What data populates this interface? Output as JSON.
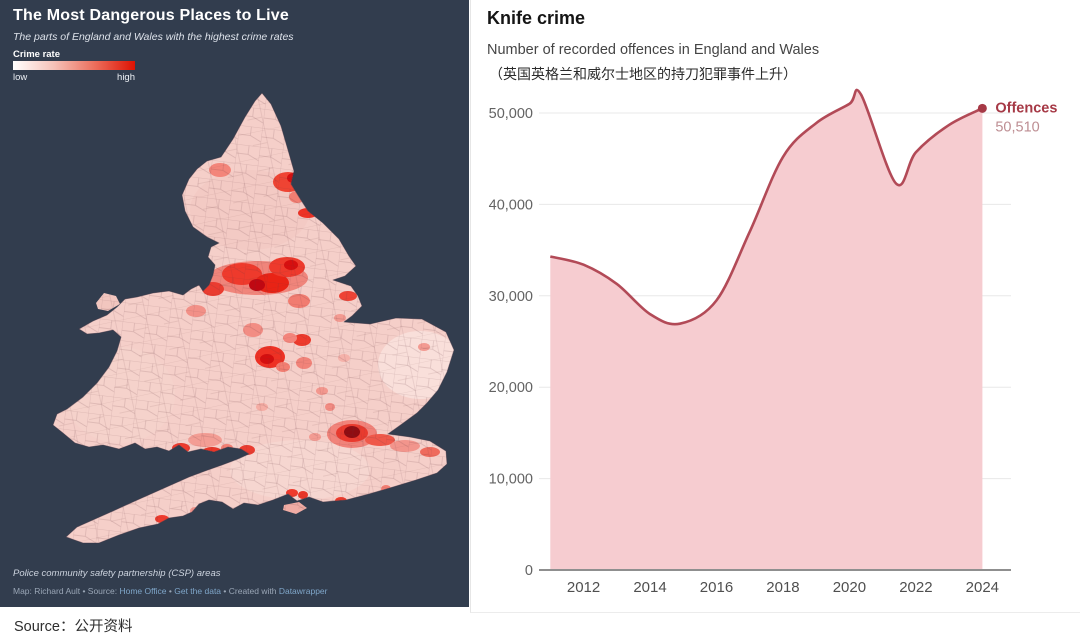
{
  "colors": {
    "left_bg": "#323d4e",
    "line": "#b24a57",
    "area_fill": "#f5c9cd",
    "dot": "#a63946",
    "offences_label": "#a63946",
    "offences_value": "#bd8d92",
    "grid": "#e8e8e8",
    "axis": "#8f8f8f",
    "ytick_text": "#636363",
    "xtick_text": "#4f4f4f",
    "link": "#7fa6c9",
    "legend_gradient": [
      "#ffffff",
      "#f6c2b9",
      "#ec6f5d",
      "#dd1202"
    ]
  },
  "left_panel": {
    "title": "The Most Dangerous Places to Live",
    "subtitle": "The parts of England and Wales with the highest crime rates",
    "legend": {
      "label": "Crime rate",
      "low": "low",
      "high": "high"
    },
    "footnote": "Police community safety partnership (CSP) areas",
    "credits": {
      "prefix": "Map: Richard Ault • Source: ",
      "link1": "Home Office",
      "sep1": " • ",
      "link2": "Get the data",
      "sep2": " • Created with ",
      "link3": "Datawrapper"
    }
  },
  "source_row": {
    "label": "Source：",
    "value": "公开资料"
  },
  "chart_data": [
    {
      "type": "choropleth",
      "title": "The Most Dangerous Places to Live",
      "subtitle": "The parts of England and Wales with the highest crime rates",
      "region": "England and Wales",
      "unit": "Police community safety partnership (CSP) areas",
      "encoding": "crime rate, sequential white-to-red scale",
      "legend": {
        "label": "Crime rate",
        "min_label": "low",
        "max_label": "high"
      }
    },
    {
      "type": "area",
      "title": "Knife crime",
      "subtitle": "Number of recorded offences in England and Wales",
      "subtitle_zh": "（英国英格兰和威尔士地区的持刀犯罪事件上升）",
      "series_label": "Offences",
      "end_label": "50,510",
      "x": [
        2011,
        2012,
        2013,
        2014,
        2014.9,
        2016,
        2017,
        2018,
        2019,
        2020,
        2020.35,
        2021.4,
        2022,
        2023,
        2024
      ],
      "values": [
        34300,
        33400,
        31300,
        28000,
        26950,
        29500,
        37000,
        45200,
        48900,
        51000,
        52000,
        42300,
        45700,
        48700,
        50510
      ],
      "xlim": [
        2010.9,
        2024.2
      ],
      "ylim": [
        0,
        50000
      ],
      "yticks": [
        0,
        10000,
        20000,
        30000,
        40000,
        50000
      ],
      "ytick_labels": [
        "0",
        "10,000",
        "20,000",
        "30,000",
        "40,000",
        "50,000"
      ],
      "xticks": [
        2012,
        2014,
        2016,
        2018,
        2020,
        2022,
        2024
      ],
      "grid": true,
      "legend_position": "end-of-line"
    }
  ]
}
